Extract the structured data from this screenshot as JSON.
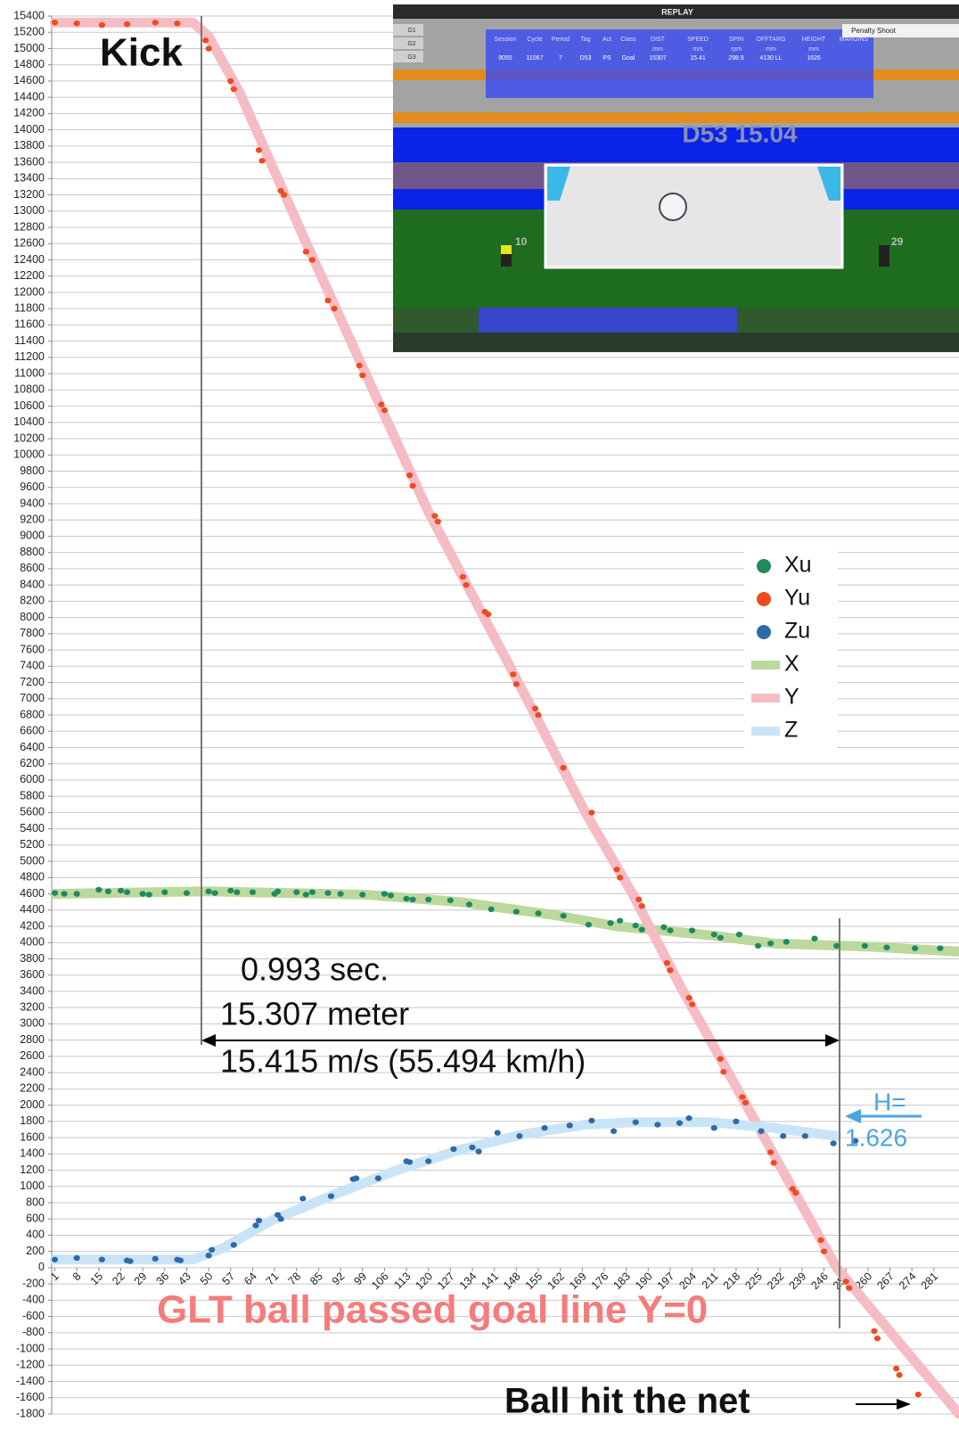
{
  "chart_data": {
    "type": "scatter",
    "xlim": [
      0,
      289
    ],
    "ylim": [
      -1800,
      15400
    ],
    "xticks": [
      1,
      8,
      15,
      22,
      29,
      36,
      43,
      50,
      57,
      64,
      71,
      78,
      85,
      92,
      99,
      106,
      113,
      120,
      127,
      134,
      141,
      148,
      155,
      162,
      169,
      176,
      183,
      190,
      197,
      204,
      211,
      218,
      225,
      232,
      239,
      246,
      253,
      260,
      267,
      274,
      281
    ],
    "yticks": [
      -1800,
      -1600,
      -1400,
      -1200,
      -1000,
      -800,
      -600,
      -400,
      -200,
      0,
      200,
      400,
      600,
      800,
      1000,
      1200,
      1400,
      1600,
      1800,
      2000,
      2200,
      2400,
      2600,
      2800,
      3000,
      3200,
      3400,
      3600,
      3800,
      4000,
      4200,
      4400,
      4600,
      4800,
      5000,
      5200,
      5400,
      5600,
      5800,
      6000,
      6200,
      6400,
      6600,
      6800,
      7000,
      7200,
      7400,
      7600,
      7800,
      8000,
      8200,
      8400,
      8600,
      8800,
      9000,
      9200,
      9400,
      9600,
      9800,
      10000,
      10200,
      10400,
      10600,
      10800,
      11000,
      11200,
      11400,
      11600,
      11800,
      12000,
      12200,
      12400,
      12600,
      12800,
      13000,
      13200,
      13400,
      13600,
      13800,
      14000,
      14200,
      14400,
      14600,
      14800,
      15000,
      15200,
      15400
    ],
    "grid": true,
    "legend": "center-right",
    "series": [
      {
        "name": "Xu",
        "style": "marker",
        "color": "#1f8a5e",
        "x": [
          1,
          4,
          8,
          15,
          18,
          22,
          24,
          29,
          31,
          36,
          43,
          50,
          52,
          57,
          59,
          64,
          71,
          72,
          78,
          81,
          83,
          88,
          92,
          99,
          106,
          108,
          113,
          115,
          120,
          127,
          133,
          140,
          148,
          155,
          163,
          171,
          178,
          181,
          186,
          188,
          195,
          197,
          204,
          211,
          213,
          219,
          225,
          229,
          234,
          243,
          250,
          259,
          266,
          275,
          283
        ],
        "values": [
          4610,
          4600,
          4600,
          4650,
          4630,
          4640,
          4620,
          4600,
          4590,
          4620,
          4610,
          4630,
          4610,
          4640,
          4620,
          4620,
          4600,
          4630,
          4620,
          4590,
          4620,
          4610,
          4600,
          4590,
          4600,
          4580,
          4540,
          4530,
          4530,
          4520,
          4470,
          4410,
          4380,
          4360,
          4330,
          4220,
          4240,
          4270,
          4210,
          4160,
          4190,
          4150,
          4150,
          4100,
          4060,
          4100,
          3960,
          3990,
          4010,
          4050,
          3960,
          3960,
          3940,
          3930,
          3930
        ]
      },
      {
        "name": "Yu",
        "style": "marker",
        "color": "#f04a1e",
        "x": [
          1,
          8,
          16,
          24,
          33,
          40,
          49,
          50,
          57,
          58,
          66,
          67,
          73,
          74,
          81,
          83,
          88,
          90,
          98,
          99,
          105,
          106,
          114,
          115,
          122,
          123,
          131,
          132,
          138,
          139,
          147,
          148,
          154,
          155,
          163,
          172,
          180,
          181,
          187,
          188,
          196,
          197,
          203,
          204,
          213,
          214,
          220,
          221,
          229,
          230,
          236,
          237,
          245,
          246,
          253,
          254,
          262,
          263,
          269,
          270,
          276
        ],
        "values": [
          15320,
          15310,
          15290,
          15300,
          15320,
          15310,
          15100,
          15000,
          14600,
          14500,
          13750,
          13620,
          13250,
          13200,
          12500,
          12400,
          11900,
          11800,
          11100,
          10980,
          10620,
          10550,
          9750,
          9620,
          9250,
          9180,
          8500,
          8400,
          8070,
          8040,
          7300,
          7180,
          6880,
          6800,
          6150,
          5600,
          4900,
          4800,
          4530,
          4450,
          3750,
          3660,
          3320,
          3240,
          2570,
          2410,
          2100,
          2030,
          1420,
          1290,
          970,
          920,
          340,
          200,
          -170,
          -250,
          -780,
          -870,
          -1240,
          -1320,
          -1560
        ]
      },
      {
        "name": "Zu",
        "style": "marker",
        "color": "#2e6aa8",
        "x": [
          1,
          8,
          16,
          24,
          25,
          33,
          40,
          41,
          50,
          51,
          58,
          65,
          66,
          72,
          73,
          80,
          89,
          96,
          97,
          104,
          113,
          114,
          120,
          128,
          134,
          136,
          142,
          149,
          157,
          165,
          172,
          179,
          186,
          193,
          200,
          203,
          211,
          218,
          226,
          233,
          240,
          249,
          256
        ],
        "values": [
          100,
          120,
          100,
          90,
          80,
          110,
          100,
          90,
          150,
          220,
          280,
          520,
          580,
          650,
          600,
          850,
          880,
          1090,
          1100,
          1100,
          1310,
          1300,
          1310,
          1460,
          1480,
          1430,
          1660,
          1620,
          1720,
          1750,
          1810,
          1680,
          1790,
          1760,
          1780,
          1840,
          1720,
          1800,
          1680,
          1620,
          1620,
          1530,
          1560
        ]
      },
      {
        "name": "X",
        "style": "line",
        "color": "#bcd89c",
        "x": [
          1,
          50,
          100,
          130,
          160,
          180,
          210,
          230,
          260,
          289
        ],
        "values": [
          4600,
          4630,
          4590,
          4500,
          4340,
          4200,
          4090,
          3990,
          3950,
          3890
        ]
      },
      {
        "name": "Y",
        "style": "line",
        "color": "#f5bcc3",
        "x": [
          1,
          45,
          50,
          60,
          80,
          100,
          120,
          150,
          170,
          185,
          200,
          250,
          289
        ],
        "values": [
          15320,
          15320,
          15150,
          14450,
          12700,
          11000,
          9300,
          7100,
          5600,
          4600,
          3480,
          0,
          -1800
        ]
      },
      {
        "name": "Z",
        "style": "line",
        "color": "#c9e4f7",
        "x": [
          1,
          45,
          55,
          70,
          90,
          110,
          130,
          150,
          170,
          185,
          210,
          230,
          250
        ],
        "values": [
          100,
          100,
          250,
          580,
          900,
          1200,
          1450,
          1640,
          1760,
          1790,
          1790,
          1720,
          1620
        ]
      }
    ],
    "annotations": [
      "Kick",
      "0.993 sec.",
      "15.307 meter",
      "15.415 m/s (55.494 km/h)",
      "H=",
      "1.626",
      "GLT ball passed goal line Y=0",
      "Ball hit the net"
    ]
  },
  "inset": {
    "title": "REPLAY",
    "tabs": [
      "G1",
      "G2",
      "G3"
    ],
    "dropdown": "Penalty Shoot",
    "headers": [
      "Session",
      "Cycle",
      "Period",
      "Tag",
      "Act",
      "Class",
      "DIST",
      "SPEED",
      "SPIN",
      "OFFTARG",
      "HEIGHT",
      "MARGINS"
    ],
    "units": [
      "mm",
      "m/s",
      "rpm",
      "mm",
      "mm"
    ],
    "row": [
      "9055",
      "11067",
      "7",
      "D53",
      "PS",
      "Goal",
      "15307",
      "15.41",
      "298.5",
      "4130 LL",
      "1626"
    ],
    "overlay": "D53 15.04",
    "players": [
      "10",
      "29"
    ]
  }
}
